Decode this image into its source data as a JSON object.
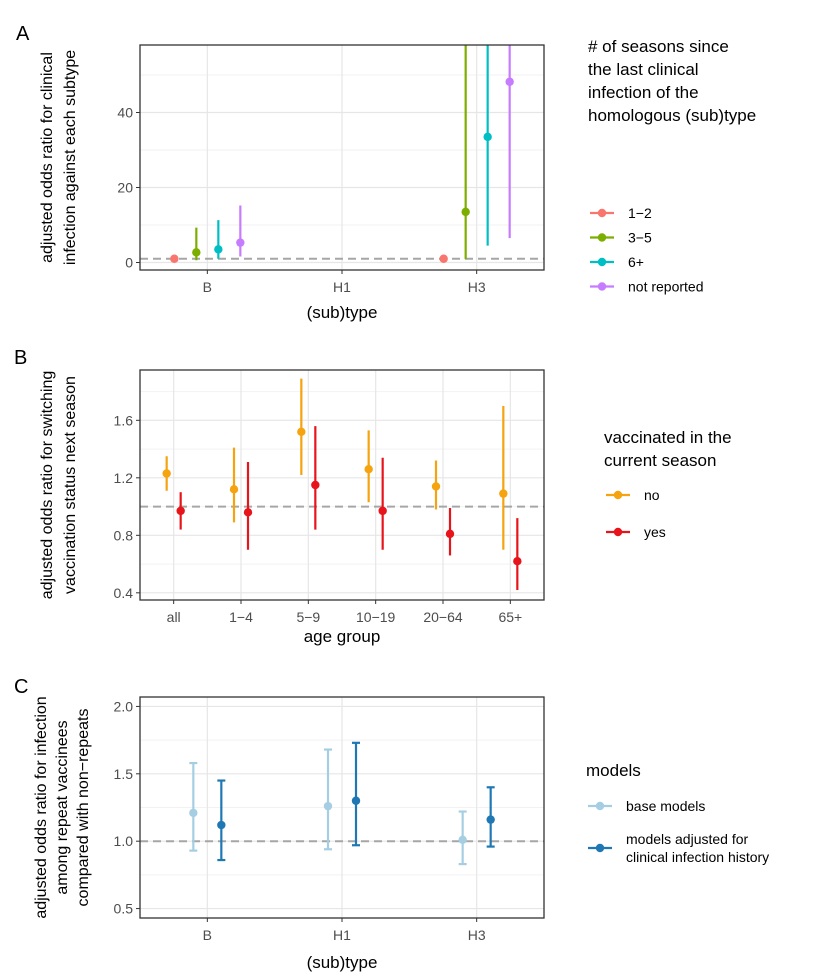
{
  "colors": {
    "reference_line": "#a6a6a6",
    "grid_major": "#e6e6e6",
    "grid_minor": "#f2f2f2",
    "frame": "#333333"
  },
  "chart_data": [
    {
      "panel_label": "A",
      "type": "errorbar",
      "xlabel": "(sub)type",
      "ylabel": [
        "adjusted odds ratio for clinical",
        "infection against each subtype"
      ],
      "categories": [
        "B",
        "H1",
        "H3"
      ],
      "yticks": [
        0,
        20,
        40
      ],
      "ylim": [
        -2,
        58
      ],
      "reference_line": 1,
      "legend_title": [
        "# of seasons since",
        "the last clinical",
        "infection of the",
        "homologous (sub)type"
      ],
      "series": [
        {
          "name": "1−2",
          "color": "#f8766d",
          "points": [
            {
              "category": "B",
              "y": 1.0,
              "lo": 1.0,
              "hi": 1.0
            },
            {
              "category": "H3",
              "y": 1.0,
              "lo": 1.0,
              "hi": 1.0
            }
          ]
        },
        {
          "name": "3−5",
          "color": "#7cae00",
          "points": [
            {
              "category": "B",
              "y": 2.7,
              "lo": 0.6,
              "hi": 9.3
            },
            {
              "category": "H3",
              "y": 13.5,
              "lo": 0.9,
              "hi": 58
            }
          ]
        },
        {
          "name": "6+",
          "color": "#00bfc4",
          "points": [
            {
              "category": "B",
              "y": 3.5,
              "lo": 1.0,
              "hi": 11.3
            },
            {
              "category": "H3",
              "y": 33.5,
              "lo": 4.5,
              "hi": 58
            }
          ]
        },
        {
          "name": "not reported",
          "color": "#c77cff",
          "points": [
            {
              "category": "B",
              "y": 5.3,
              "lo": 1.6,
              "hi": 15.2
            },
            {
              "category": "H3",
              "y": 48.2,
              "lo": 6.5,
              "hi": 58
            }
          ]
        }
      ]
    },
    {
      "panel_label": "B",
      "type": "errorbar",
      "xlabel": "age group",
      "ylabel": [
        "adjusted odds ratio for switching",
        "vaccination status next season"
      ],
      "categories": [
        "all",
        "1−4",
        "5−9",
        "10−19",
        "20−64",
        "65+"
      ],
      "yticks": [
        0.4,
        0.8,
        1.2,
        1.6
      ],
      "ylim": [
        0.35,
        1.95
      ],
      "reference_line": 1,
      "legend_title": [
        "vaccinated in the",
        "current season"
      ],
      "series": [
        {
          "name": "no",
          "color": "#f5a30f",
          "points": [
            {
              "category": "all",
              "y": 1.23,
              "lo": 1.11,
              "hi": 1.35
            },
            {
              "category": "1−4",
              "y": 1.12,
              "lo": 0.89,
              "hi": 1.41
            },
            {
              "category": "5−9",
              "y": 1.52,
              "lo": 1.22,
              "hi": 1.89
            },
            {
              "category": "10−19",
              "y": 1.26,
              "lo": 1.03,
              "hi": 1.53
            },
            {
              "category": "20−64",
              "y": 1.14,
              "lo": 0.98,
              "hi": 1.32
            },
            {
              "category": "65+",
              "y": 1.09,
              "lo": 0.7,
              "hi": 1.7
            }
          ]
        },
        {
          "name": "yes",
          "color": "#e8141c",
          "points": [
            {
              "category": "all",
              "y": 0.97,
              "lo": 0.84,
              "hi": 1.1
            },
            {
              "category": "1−4",
              "y": 0.96,
              "lo": 0.7,
              "hi": 1.31
            },
            {
              "category": "5−9",
              "y": 1.15,
              "lo": 0.84,
              "hi": 1.56
            },
            {
              "category": "10−19",
              "y": 0.97,
              "lo": 0.7,
              "hi": 1.34
            },
            {
              "category": "20−64",
              "y": 0.81,
              "lo": 0.66,
              "hi": 0.99
            },
            {
              "category": "65+",
              "y": 0.62,
              "lo": 0.42,
              "hi": 0.92
            }
          ]
        }
      ]
    },
    {
      "panel_label": "C",
      "type": "errorbar",
      "xlabel": "(sub)type",
      "ylabel": [
        "adjusted odds ratio for infection",
        "among repeat vaccinees",
        "compared with non−repeats"
      ],
      "categories": [
        "B",
        "H1",
        "H3"
      ],
      "yticks": [
        0.5,
        1.0,
        1.5,
        2.0
      ],
      "ylim": [
        0.43,
        2.07
      ],
      "reference_line": 1,
      "legend_title": [
        "models"
      ],
      "series": [
        {
          "name": "base models",
          "color": "#a6cee3",
          "points": [
            {
              "category": "B",
              "y": 1.21,
              "lo": 0.93,
              "hi": 1.58
            },
            {
              "category": "H1",
              "y": 1.26,
              "lo": 0.94,
              "hi": 1.68
            },
            {
              "category": "H3",
              "y": 1.01,
              "lo": 0.83,
              "hi": 1.22
            }
          ]
        },
        {
          "name": "models adjusted for\nclinical infection history",
          "color": "#1f78b4",
          "points": [
            {
              "category": "B",
              "y": 1.12,
              "lo": 0.86,
              "hi": 1.45
            },
            {
              "category": "H1",
              "y": 1.3,
              "lo": 0.97,
              "hi": 1.73
            },
            {
              "category": "H3",
              "y": 1.16,
              "lo": 0.96,
              "hi": 1.4
            }
          ]
        }
      ]
    }
  ]
}
